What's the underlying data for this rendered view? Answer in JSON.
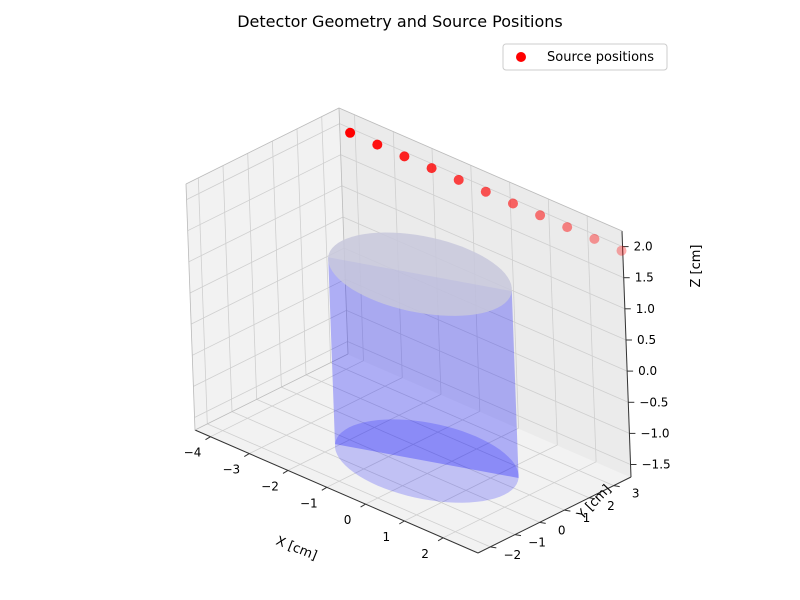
{
  "chart_data": {
    "type": "scatter",
    "projection": "3d",
    "title": "Detector Geometry and Source Positions",
    "xlabel": "X [cm]",
    "ylabel": "Y [cm]",
    "zlabel": "Z [cm]",
    "xlim": [
      -4.4,
      2.9
    ],
    "ylim": [
      -2.5,
      3.7
    ],
    "zlim": [
      -1.7,
      2.25
    ],
    "xticks": [
      -4,
      -3,
      -2,
      -1,
      0,
      1,
      2
    ],
    "yticks": [
      -2,
      -1,
      0,
      1,
      2,
      3
    ],
    "zticks": [
      -1.5,
      -1.0,
      -0.5,
      0.0,
      0.5,
      1.0,
      1.5,
      2.0
    ],
    "xtick_labels": [
      "−4",
      "−3",
      "−2",
      "−1",
      "0",
      "1",
      "2"
    ],
    "ytick_labels": [
      "−2",
      "−1",
      "0",
      "1",
      "2",
      "3"
    ],
    "ztick_labels": [
      "−1.5",
      "−1.0",
      "−0.5",
      "0.0",
      "0.5",
      "1.0",
      "1.5",
      "2.0"
    ],
    "grid": true,
    "legend": {
      "placement": "top-right",
      "entries": [
        "Source positions"
      ]
    },
    "series": [
      {
        "name": "Source positions",
        "color": "#ff0000",
        "points": [
          {
            "x": -4.0,
            "y": 3.5,
            "z": 2.0
          },
          {
            "x": -3.3,
            "y": 3.5,
            "z": 2.0
          },
          {
            "x": -2.6,
            "y": 3.5,
            "z": 2.0
          },
          {
            "x": -1.9,
            "y": 3.5,
            "z": 2.0
          },
          {
            "x": -1.2,
            "y": 3.5,
            "z": 2.0
          },
          {
            "x": -0.5,
            "y": 3.5,
            "z": 2.0
          },
          {
            "x": 0.2,
            "y": 3.5,
            "z": 2.0
          },
          {
            "x": 0.9,
            "y": 3.5,
            "z": 2.0
          },
          {
            "x": 1.6,
            "y": 3.5,
            "z": 2.0
          },
          {
            "x": 2.3,
            "y": 3.5,
            "z": 2.0
          },
          {
            "x": 3.0,
            "y": 3.5,
            "z": 2.0
          }
        ]
      }
    ],
    "detector": {
      "shape": "cylinder",
      "color": "#0000ff",
      "center": [
        0.0,
        0.0
      ],
      "radius": 2.0,
      "z_range": [
        -1.5,
        1.5
      ]
    }
  }
}
